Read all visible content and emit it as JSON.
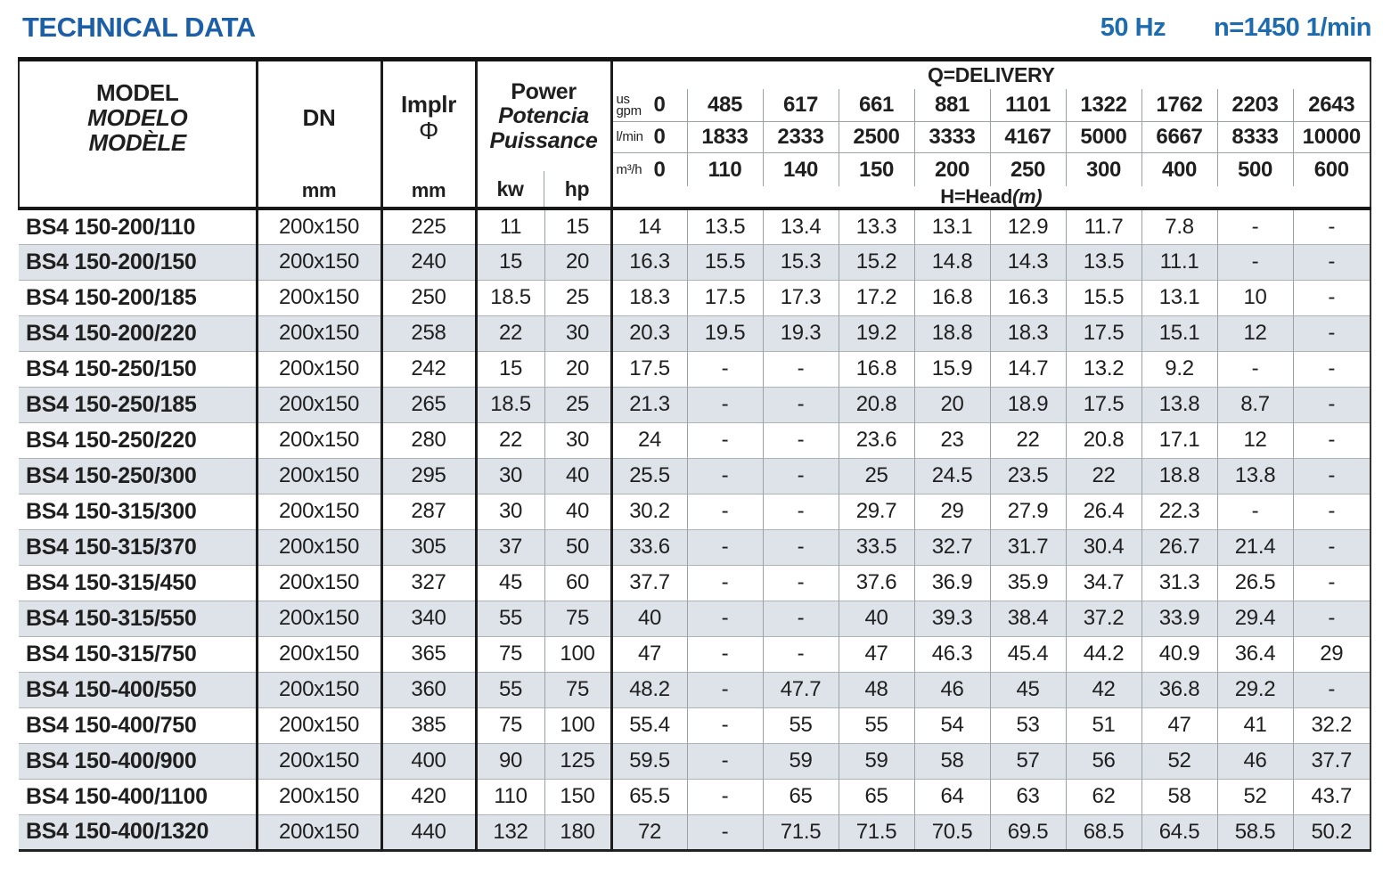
{
  "title": "TECHNICAL DATA",
  "conditions": {
    "frequency": "50 Hz",
    "speed": "n=1450 1/min"
  },
  "colors": {
    "accent_blue": "#1d5fa7",
    "frequency_blue": "#1e6cae",
    "alt_row": "#dde3e9",
    "grid_gray": "#9aa1a7",
    "border_black": "#1c1c1c"
  },
  "table": {
    "headers": {
      "model": {
        "en": "MODEL",
        "es": "MODELO",
        "fr": "MODÈLE"
      },
      "dn": {
        "label": "DN",
        "unit": "mm"
      },
      "impeller": {
        "label": "Implr",
        "symbol": "Φ",
        "unit": "mm"
      },
      "power": {
        "en": "Power",
        "es": "Potencia",
        "fr": "Puissance",
        "kw": "kw",
        "hp": "hp"
      },
      "delivery": {
        "title": "Q=DELIVERY",
        "gpm": {
          "unit_line1": "us",
          "unit_line2": "gpm",
          "zero": "0",
          "values": [
            "485",
            "617",
            "661",
            "881",
            "1101",
            "1322",
            "1762",
            "2203",
            "2643"
          ]
        },
        "lmin": {
          "unit": "l/min",
          "zero": "0",
          "values": [
            "1833",
            "2333",
            "2500",
            "3333",
            "4167",
            "5000",
            "6667",
            "8333",
            "10000"
          ]
        },
        "m3h": {
          "unit": "m³/h",
          "zero": "0",
          "values": [
            "110",
            "140",
            "150",
            "200",
            "250",
            "300",
            "400",
            "500",
            "600"
          ]
        },
        "head": {
          "label": "H=Head",
          "unit": "(m)"
        }
      }
    },
    "rows": [
      {
        "model": "BS4 150-200/110",
        "dn": "200x150",
        "implr": "225",
        "kw": "11",
        "hp": "15",
        "q": [
          "14",
          "13.5",
          "13.4",
          "13.3",
          "13.1",
          "12.9",
          "11.7",
          "7.8",
          "-",
          "-"
        ]
      },
      {
        "model": "BS4 150-200/150",
        "dn": "200x150",
        "implr": "240",
        "kw": "15",
        "hp": "20",
        "q": [
          "16.3",
          "15.5",
          "15.3",
          "15.2",
          "14.8",
          "14.3",
          "13.5",
          "11.1",
          "-",
          "-"
        ]
      },
      {
        "model": "BS4 150-200/185",
        "dn": "200x150",
        "implr": "250",
        "kw": "18.5",
        "hp": "25",
        "q": [
          "18.3",
          "17.5",
          "17.3",
          "17.2",
          "16.8",
          "16.3",
          "15.5",
          "13.1",
          "10",
          "-"
        ]
      },
      {
        "model": "BS4 150-200/220",
        "dn": "200x150",
        "implr": "258",
        "kw": "22",
        "hp": "30",
        "q": [
          "20.3",
          "19.5",
          "19.3",
          "19.2",
          "18.8",
          "18.3",
          "17.5",
          "15.1",
          "12",
          "-"
        ]
      },
      {
        "model": "BS4 150-250/150",
        "dn": "200x150",
        "implr": "242",
        "kw": "15",
        "hp": "20",
        "q": [
          "17.5",
          "-",
          "-",
          "16.8",
          "15.9",
          "14.7",
          "13.2",
          "9.2",
          "-",
          "-"
        ]
      },
      {
        "model": "BS4 150-250/185",
        "dn": "200x150",
        "implr": "265",
        "kw": "18.5",
        "hp": "25",
        "q": [
          "21.3",
          "-",
          "-",
          "20.8",
          "20",
          "18.9",
          "17.5",
          "13.8",
          "8.7",
          "-"
        ]
      },
      {
        "model": "BS4 150-250/220",
        "dn": "200x150",
        "implr": "280",
        "kw": "22",
        "hp": "30",
        "q": [
          "24",
          "-",
          "-",
          "23.6",
          "23",
          "22",
          "20.8",
          "17.1",
          "12",
          "-"
        ]
      },
      {
        "model": "BS4 150-250/300",
        "dn": "200x150",
        "implr": "295",
        "kw": "30",
        "hp": "40",
        "q": [
          "25.5",
          "-",
          "-",
          "25",
          "24.5",
          "23.5",
          "22",
          "18.8",
          "13.8",
          "-"
        ]
      },
      {
        "model": "BS4 150-315/300",
        "dn": "200x150",
        "implr": "287",
        "kw": "30",
        "hp": "40",
        "q": [
          "30.2",
          "-",
          "-",
          "29.7",
          "29",
          "27.9",
          "26.4",
          "22.3",
          "-",
          "-"
        ]
      },
      {
        "model": "BS4 150-315/370",
        "dn": "200x150",
        "implr": "305",
        "kw": "37",
        "hp": "50",
        "q": [
          "33.6",
          "-",
          "-",
          "33.5",
          "32.7",
          "31.7",
          "30.4",
          "26.7",
          "21.4",
          "-"
        ]
      },
      {
        "model": "BS4 150-315/450",
        "dn": "200x150",
        "implr": "327",
        "kw": "45",
        "hp": "60",
        "q": [
          "37.7",
          "-",
          "-",
          "37.6",
          "36.9",
          "35.9",
          "34.7",
          "31.3",
          "26.5",
          "-"
        ]
      },
      {
        "model": "BS4 150-315/550",
        "dn": "200x150",
        "implr": "340",
        "kw": "55",
        "hp": "75",
        "q": [
          "40",
          "-",
          "-",
          "40",
          "39.3",
          "38.4",
          "37.2",
          "33.9",
          "29.4",
          "-"
        ]
      },
      {
        "model": "BS4 150-315/750",
        "dn": "200x150",
        "implr": "365",
        "kw": "75",
        "hp": "100",
        "q": [
          "47",
          "-",
          "-",
          "47",
          "46.3",
          "45.4",
          "44.2",
          "40.9",
          "36.4",
          "29"
        ]
      },
      {
        "model": "BS4 150-400/550",
        "dn": "200x150",
        "implr": "360",
        "kw": "55",
        "hp": "75",
        "q": [
          "48.2",
          "-",
          "47.7",
          "48",
          "46",
          "45",
          "42",
          "36.8",
          "29.2",
          "-"
        ]
      },
      {
        "model": "BS4 150-400/750",
        "dn": "200x150",
        "implr": "385",
        "kw": "75",
        "hp": "100",
        "q": [
          "55.4",
          "-",
          "55",
          "55",
          "54",
          "53",
          "51",
          "47",
          "41",
          "32.2"
        ]
      },
      {
        "model": "BS4 150-400/900",
        "dn": "200x150",
        "implr": "400",
        "kw": "90",
        "hp": "125",
        "q": [
          "59.5",
          "-",
          "59",
          "59",
          "58",
          "57",
          "56",
          "52",
          "46",
          "37.7"
        ]
      },
      {
        "model": "BS4 150-400/1100",
        "dn": "200x150",
        "implr": "420",
        "kw": "110",
        "hp": "150",
        "q": [
          "65.5",
          "-",
          "65",
          "65",
          "64",
          "63",
          "62",
          "58",
          "52",
          "43.7"
        ]
      },
      {
        "model": "BS4 150-400/1320",
        "dn": "200x150",
        "implr": "440",
        "kw": "132",
        "hp": "180",
        "q": [
          "72",
          "-",
          "71.5",
          "71.5",
          "70.5",
          "69.5",
          "68.5",
          "64.5",
          "58.5",
          "50.2"
        ]
      }
    ]
  }
}
